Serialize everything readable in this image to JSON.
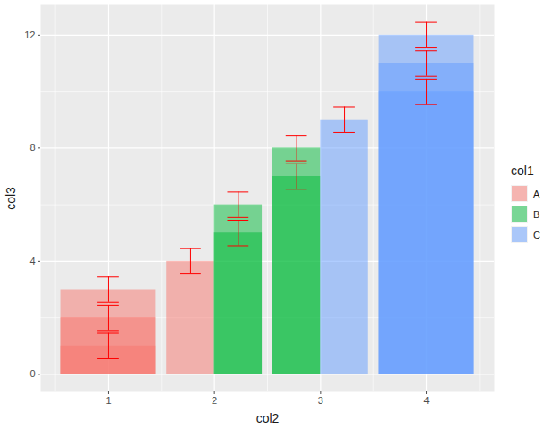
{
  "chart_data": {
    "type": "bar",
    "x_label": "col2",
    "y_label": "col3",
    "legend_title": "col1",
    "xlim": [
      0.36,
      4.64
    ],
    "xticks": [
      1,
      2,
      3,
      4
    ],
    "ylim": [
      -0.62,
      13.07
    ],
    "yticks": [
      0,
      4,
      8,
      12
    ],
    "grid": true,
    "legend": "right",
    "series": [
      {
        "name": "A",
        "color": "#F8766D",
        "x": [
          1,
          1,
          1,
          2
        ],
        "values": [
          1,
          2,
          3,
          4
        ],
        "yerr": [
          0.45,
          0.45,
          0.45,
          0.45
        ]
      },
      {
        "name": "B",
        "color": "#00BA38",
        "x": [
          2,
          2,
          3,
          3
        ],
        "values": [
          5,
          6,
          7,
          8
        ],
        "yerr": [
          0.45,
          0.45,
          0.45,
          0.45
        ]
      },
      {
        "name": "C",
        "color": "#619CFF",
        "x": [
          3,
          4,
          4,
          4
        ],
        "values": [
          9,
          10,
          11,
          12
        ],
        "yerr": [
          0.45,
          0.45,
          0.45,
          0.45
        ]
      }
    ]
  }
}
